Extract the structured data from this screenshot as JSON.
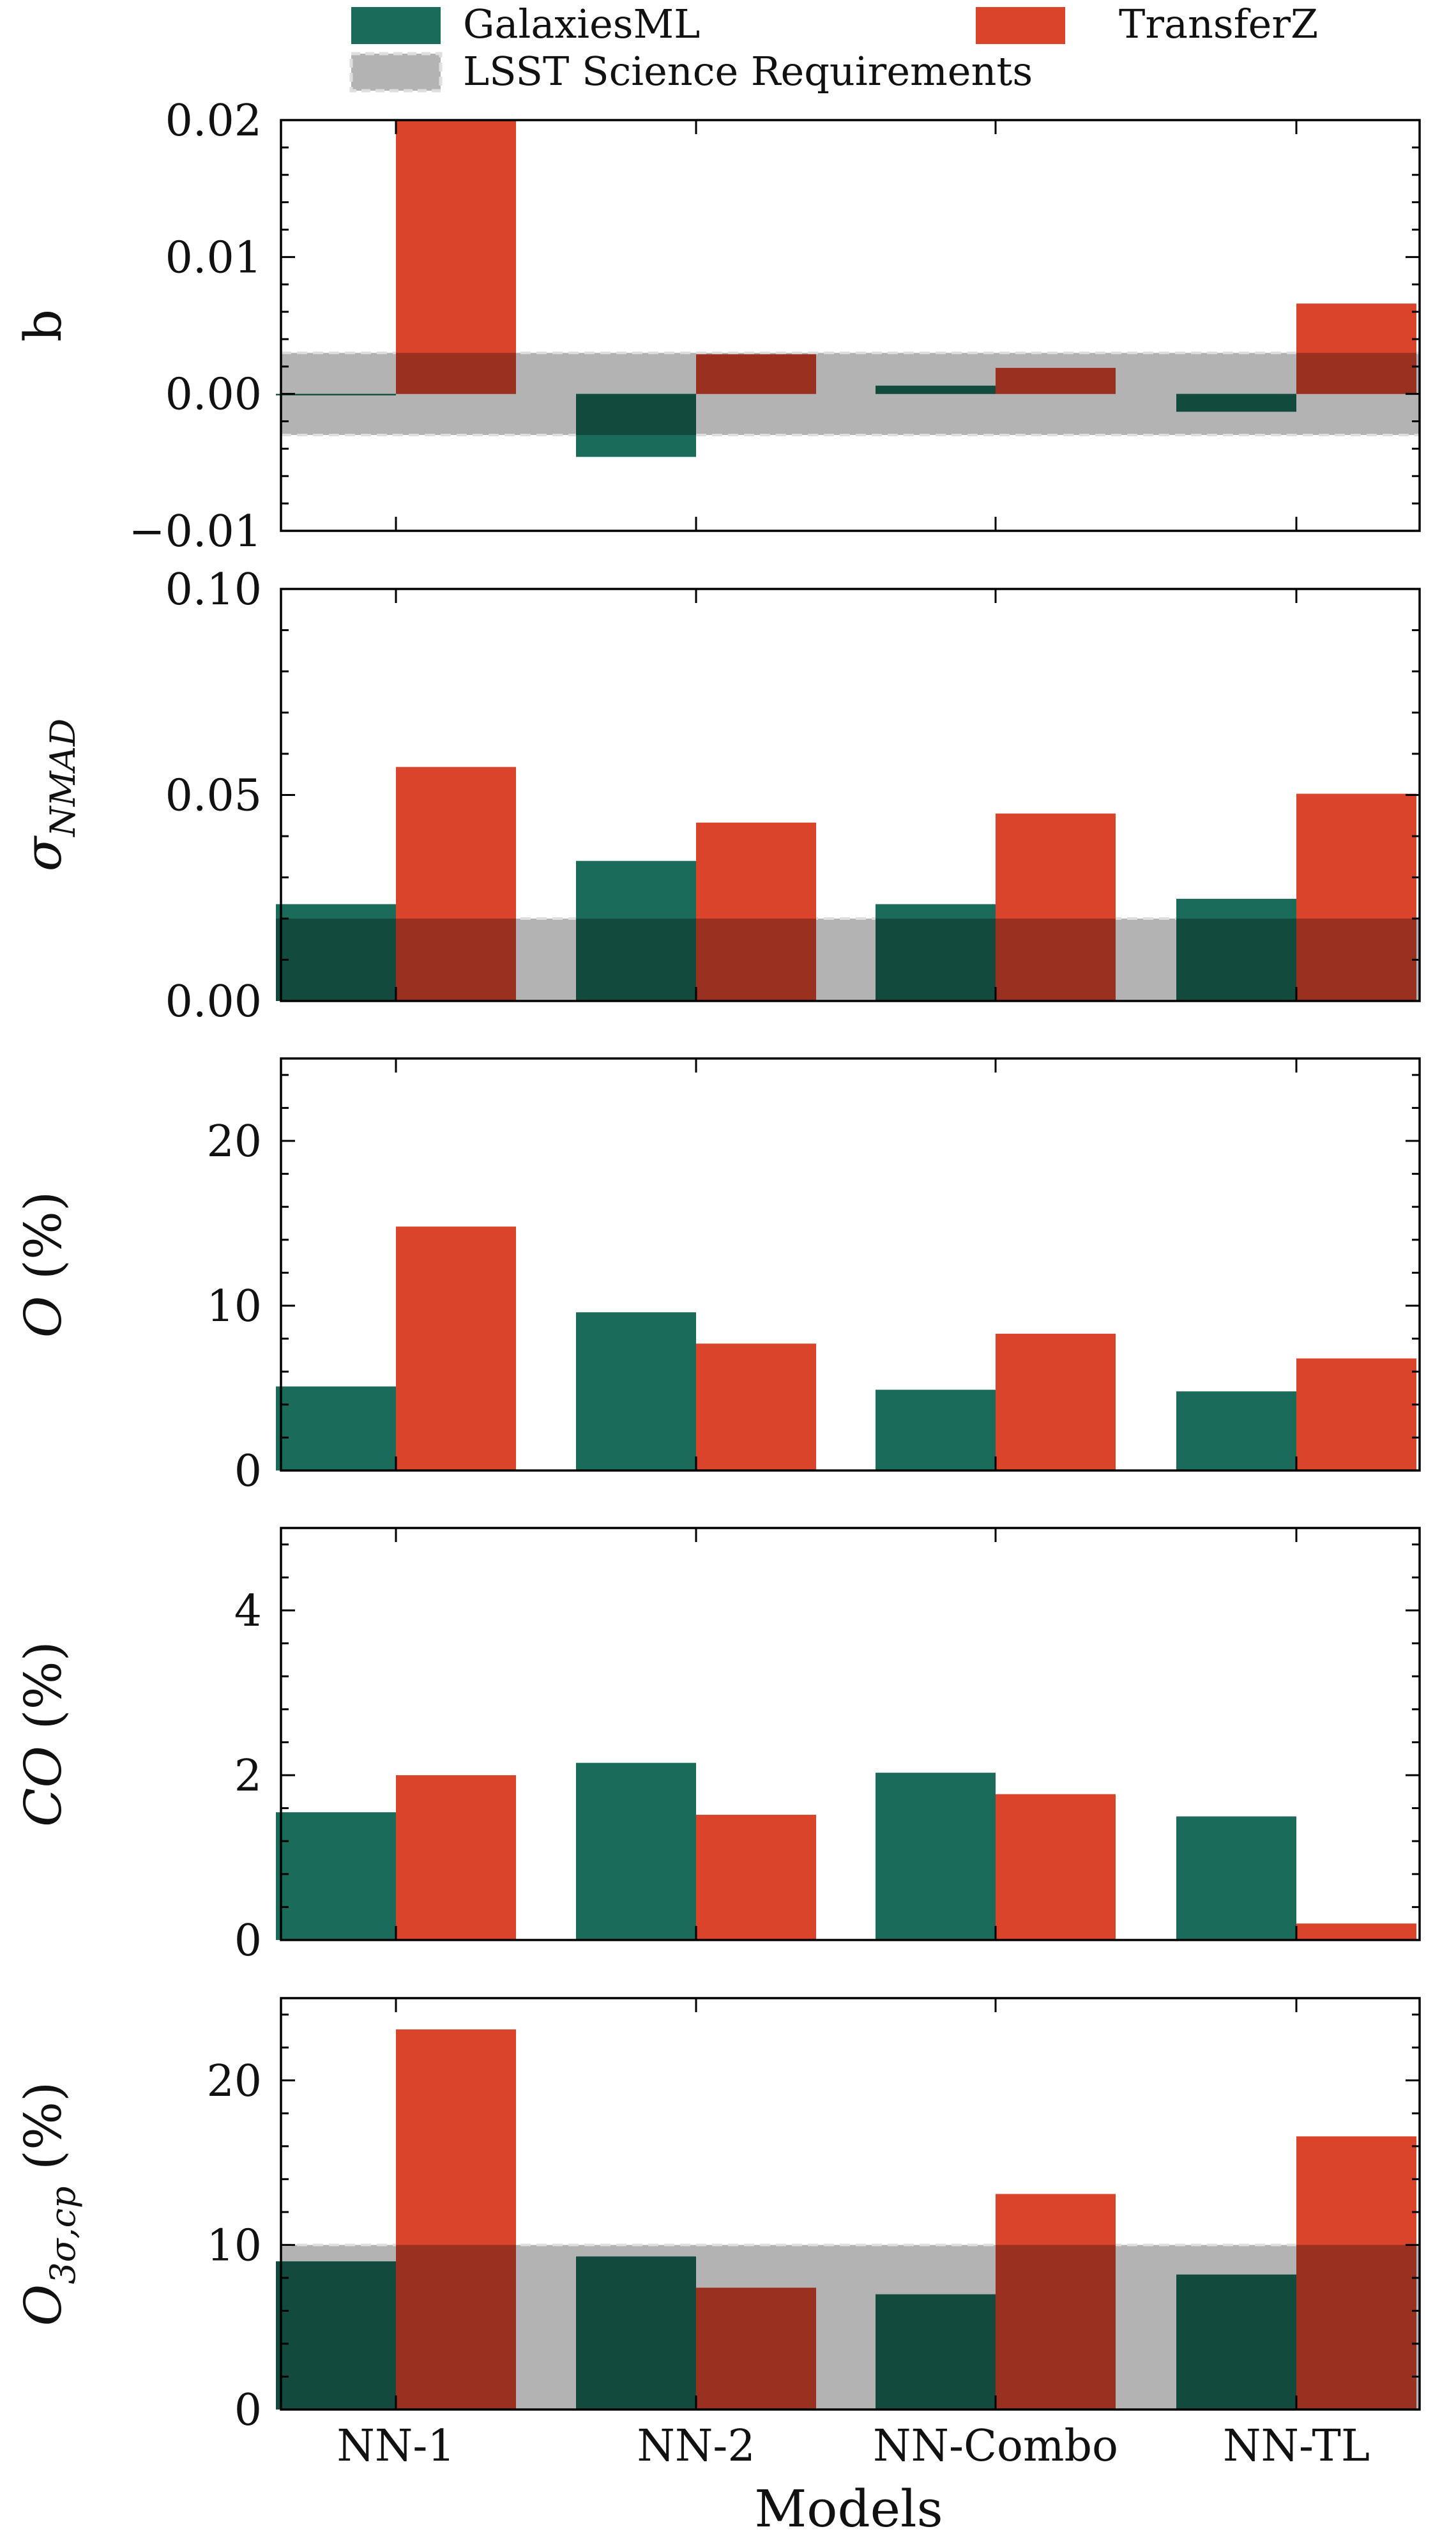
{
  "legend": {
    "items": [
      {
        "label": "GalaxiesML",
        "color": "#1b6b5a"
      },
      {
        "label": "TransferZ",
        "color": "#d9442b"
      },
      {
        "label": "LSST Science Requirements",
        "color": "#b3b3b3"
      }
    ]
  },
  "colors": {
    "galaxiesml": "#1b6b5a",
    "transferz": "#d9442b",
    "requirement_band": "#b3b3b3",
    "requirement_edge": "#dedede"
  },
  "chart_data": [
    {
      "type": "bar",
      "ylabel": "b",
      "categories": [
        "NN-1",
        "NN-2",
        "NN-Combo",
        "NN-TL"
      ],
      "series": [
        {
          "name": "GalaxiesML",
          "values": [
            -0.0001,
            -0.0046,
            0.0006,
            -0.0013
          ]
        },
        {
          "name": "TransferZ",
          "values": [
            0.02,
            0.0029,
            0.0019,
            0.0066
          ]
        }
      ],
      "ylim": [
        -0.01,
        0.02
      ],
      "yticks": [
        -0.01,
        0.0,
        0.01,
        0.02
      ],
      "ytick_labels": [
        "−0.01",
        "0.00",
        "0.01",
        "0.02"
      ],
      "requirement_band": [
        -0.003,
        0.003
      ]
    },
    {
      "type": "bar",
      "ylabel": "σ_NMAD",
      "categories": [
        "NN-1",
        "NN-2",
        "NN-Combo",
        "NN-TL"
      ],
      "series": [
        {
          "name": "GalaxiesML",
          "values": [
            0.0235,
            0.034,
            0.0235,
            0.0248
          ]
        },
        {
          "name": "TransferZ",
          "values": [
            0.0568,
            0.0433,
            0.0455,
            0.0503
          ]
        }
      ],
      "ylim": [
        0.0,
        0.1
      ],
      "yticks": [
        0.0,
        0.05,
        0.1
      ],
      "ytick_labels": [
        "0.00",
        "0.05",
        "0.10"
      ],
      "requirement_band": [
        0.0,
        0.02
      ]
    },
    {
      "type": "bar",
      "ylabel": "O (%)",
      "categories": [
        "NN-1",
        "NN-2",
        "NN-Combo",
        "NN-TL"
      ],
      "series": [
        {
          "name": "GalaxiesML",
          "values": [
            5.1,
            9.6,
            4.9,
            4.8
          ]
        },
        {
          "name": "TransferZ",
          "values": [
            14.8,
            7.7,
            8.3,
            6.8
          ]
        }
      ],
      "ylim": [
        0,
        25
      ],
      "yticks": [
        0,
        10,
        20
      ],
      "ytick_labels": [
        "0",
        "10",
        "20"
      ]
    },
    {
      "type": "bar",
      "ylabel": "CO (%)",
      "categories": [
        "NN-1",
        "NN-2",
        "NN-Combo",
        "NN-TL"
      ],
      "series": [
        {
          "name": "GalaxiesML",
          "values": [
            1.55,
            2.15,
            2.03,
            1.5
          ]
        },
        {
          "name": "TransferZ",
          "values": [
            2.0,
            1.52,
            1.77,
            0.2
          ]
        }
      ],
      "ylim": [
        0,
        5
      ],
      "yticks": [
        0,
        2,
        4
      ],
      "ytick_labels": [
        "0",
        "2",
        "4"
      ]
    },
    {
      "type": "bar",
      "ylabel": "O_3σ,cp (%)",
      "xlabel": "Models",
      "categories": [
        "NN-1",
        "NN-2",
        "NN-Combo",
        "NN-TL"
      ],
      "series": [
        {
          "name": "GalaxiesML",
          "values": [
            9.0,
            9.3,
            7.0,
            8.2
          ]
        },
        {
          "name": "TransferZ",
          "values": [
            23.1,
            7.4,
            13.1,
            16.6
          ]
        }
      ],
      "ylim": [
        0,
        25
      ],
      "yticks": [
        0,
        10,
        20
      ],
      "ytick_labels": [
        "0",
        "10",
        "20"
      ],
      "requirement_band": [
        0,
        10
      ]
    }
  ]
}
